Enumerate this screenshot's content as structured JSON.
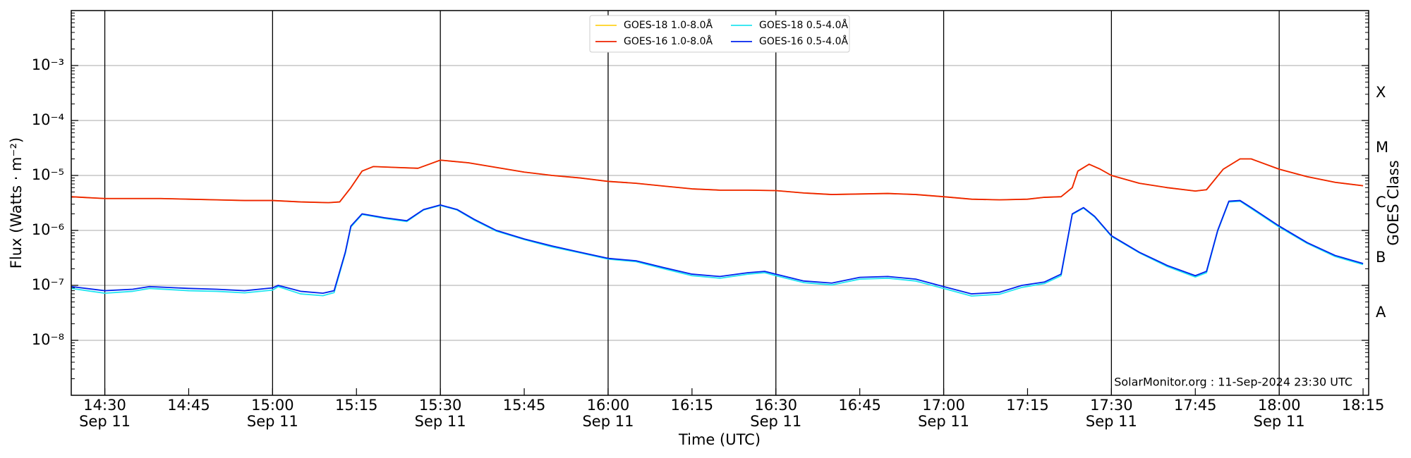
{
  "chart_data": {
    "type": "line",
    "xlabel": "Time (UTC)",
    "ylabel": "Flux (Watts · m⁻²)",
    "y2label": "GOES Class",
    "annotation": "SolarMonitor.org : 11-Sep-2024 23:30 UTC",
    "log_y": true,
    "grid": true,
    "xgrid": true,
    "legend": "top-center",
    "xlim": [
      "14:24",
      "18:16"
    ],
    "xticks": [
      {
        "value": "14:30",
        "label": "14:30",
        "date": "Sep 11"
      },
      {
        "value": "14:45",
        "label": "14:45"
      },
      {
        "value": "15:00",
        "label": "15:00",
        "date": "Sep 11"
      },
      {
        "value": "15:15",
        "label": "15:15"
      },
      {
        "value": "15:30",
        "label": "15:30",
        "date": "Sep 11"
      },
      {
        "value": "15:45",
        "label": "15:45"
      },
      {
        "value": "16:00",
        "label": "16:00",
        "date": "Sep 11"
      },
      {
        "value": "16:15",
        "label": "16:15"
      },
      {
        "value": "16:30",
        "label": "16:30",
        "date": "Sep 11"
      },
      {
        "value": "16:45",
        "label": "16:45"
      },
      {
        "value": "17:00",
        "label": "17:00",
        "date": "Sep 11"
      },
      {
        "value": "17:15",
        "label": "17:15"
      },
      {
        "value": "17:30",
        "label": "17:30",
        "date": "Sep 11"
      },
      {
        "value": "17:45",
        "label": "17:45"
      },
      {
        "value": "18:00",
        "label": "18:00",
        "date": "Sep 11"
      },
      {
        "value": "18:15",
        "label": "18:15"
      }
    ],
    "ylim": [
      1e-09,
      0.01
    ],
    "yticks": [
      {
        "value": 1e-08,
        "label": "10⁻⁸"
      },
      {
        "value": 1e-07,
        "label": "10⁻⁷"
      },
      {
        "value": 1e-06,
        "label": "10⁻⁶"
      },
      {
        "value": 1e-05,
        "label": "10⁻⁵"
      },
      {
        "value": 0.0001,
        "label": "10⁻⁴"
      },
      {
        "value": 0.001,
        "label": "10⁻³"
      }
    ],
    "y2lim": [
      1e-09,
      0.01
    ],
    "y2ticks": [
      {
        "value": 3.162e-08,
        "label": "A"
      },
      {
        "value": 3.162e-07,
        "label": "B"
      },
      {
        "value": 3.162e-06,
        "label": "C"
      },
      {
        "value": 3.162e-05,
        "label": "M"
      },
      {
        "value": 0.0003162,
        "label": "X"
      }
    ],
    "series": [
      {
        "name": "GOES-18 1.0-8.0Å",
        "color": "#ffd21f",
        "x": [
          "14:24",
          "14:30",
          "14:35",
          "14:40",
          "14:45",
          "14:50",
          "14:55",
          "15:00",
          "15:05",
          "15:10",
          "15:12",
          "15:14",
          "15:16",
          "15:18",
          "15:22",
          "15:26",
          "15:28",
          "15:30",
          "15:35",
          "15:40",
          "15:45",
          "15:50",
          "15:55",
          "16:00",
          "16:05",
          "16:10",
          "16:15",
          "16:20",
          "16:25",
          "16:30",
          "16:35",
          "16:40",
          "16:45",
          "16:50",
          "16:55",
          "17:00",
          "17:05",
          "17:10",
          "17:15",
          "17:18",
          "17:21",
          "17:23",
          "17:24",
          "17:26",
          "17:28",
          "17:30",
          "17:35",
          "17:40",
          "17:45",
          "17:47",
          "17:50",
          "17:53",
          "17:55",
          "18:00",
          "18:05",
          "18:10",
          "18:15"
        ],
        "values": [
          4.1e-06,
          3.8e-06,
          3.8e-06,
          3.8e-06,
          3.7e-06,
          3.6e-06,
          3.5e-06,
          3.5e-06,
          3.3e-06,
          3.2e-06,
          3.3e-06,
          6e-06,
          1.2e-05,
          1.45e-05,
          1.4e-05,
          1.35e-05,
          1.6e-05,
          1.9e-05,
          1.7e-05,
          1.4e-05,
          1.15e-05,
          1e-05,
          9e-06,
          7.8e-06,
          7.2e-06,
          6.4e-06,
          5.7e-06,
          5.4e-06,
          5.4e-06,
          5.3e-06,
          4.8e-06,
          4.5e-06,
          4.6e-06,
          4.7e-06,
          4.5e-06,
          4.1e-06,
          3.7e-06,
          3.6e-06,
          3.7e-06,
          4e-06,
          4.1e-06,
          6e-06,
          1.2e-05,
          1.6e-05,
          1.3e-05,
          1e-05,
          7.2e-06,
          6e-06,
          5.2e-06,
          5.5e-06,
          1.3e-05,
          2e-05,
          2e-05,
          1.3e-05,
          9.5e-06,
          7.5e-06,
          6.5e-06
        ]
      },
      {
        "name": "GOES-16 1.0-8.0Å",
        "color": "#ee2200",
        "x": [
          "14:24",
          "14:30",
          "14:35",
          "14:40",
          "14:45",
          "14:50",
          "14:55",
          "15:00",
          "15:05",
          "15:10",
          "15:12",
          "15:14",
          "15:16",
          "15:18",
          "15:22",
          "15:26",
          "15:28",
          "15:30",
          "15:35",
          "15:40",
          "15:45",
          "15:50",
          "15:55",
          "16:00",
          "16:05",
          "16:10",
          "16:15",
          "16:20",
          "16:25",
          "16:30",
          "16:35",
          "16:40",
          "16:45",
          "16:50",
          "16:55",
          "17:00",
          "17:05",
          "17:10",
          "17:15",
          "17:18",
          "17:21",
          "17:23",
          "17:24",
          "17:26",
          "17:28",
          "17:30",
          "17:35",
          "17:40",
          "17:45",
          "17:47",
          "17:50",
          "17:53",
          "17:55",
          "18:00",
          "18:05",
          "18:10",
          "18:15"
        ],
        "values": [
          4.1e-06,
          3.8e-06,
          3.8e-06,
          3.8e-06,
          3.7e-06,
          3.6e-06,
          3.5e-06,
          3.5e-06,
          3.3e-06,
          3.2e-06,
          3.3e-06,
          6e-06,
          1.2e-05,
          1.45e-05,
          1.4e-05,
          1.35e-05,
          1.6e-05,
          1.9e-05,
          1.7e-05,
          1.4e-05,
          1.15e-05,
          1e-05,
          9e-06,
          7.8e-06,
          7.2e-06,
          6.4e-06,
          5.7e-06,
          5.4e-06,
          5.4e-06,
          5.3e-06,
          4.8e-06,
          4.5e-06,
          4.6e-06,
          4.7e-06,
          4.5e-06,
          4.1e-06,
          3.7e-06,
          3.6e-06,
          3.7e-06,
          4e-06,
          4.1e-06,
          6e-06,
          1.2e-05,
          1.6e-05,
          1.3e-05,
          1e-05,
          7.2e-06,
          6e-06,
          5.2e-06,
          5.5e-06,
          1.3e-05,
          2e-05,
          2e-05,
          1.3e-05,
          9.5e-06,
          7.5e-06,
          6.5e-06
        ]
      },
      {
        "name": "GOES-18 0.5-4.0Å",
        "color": "#22e5f0",
        "x": [
          "14:24",
          "14:30",
          "14:35",
          "14:38",
          "14:45",
          "14:50",
          "14:55",
          "15:00",
          "15:01",
          "15:05",
          "15:09",
          "15:11",
          "15:13",
          "15:14",
          "15:16",
          "15:20",
          "15:24",
          "15:27",
          "15:30",
          "15:33",
          "15:36",
          "15:40",
          "15:45",
          "15:50",
          "15:55",
          "16:00",
          "16:05",
          "16:10",
          "16:15",
          "16:20",
          "16:25",
          "16:28",
          "16:30",
          "16:35",
          "16:40",
          "16:45",
          "16:50",
          "16:55",
          "17:00",
          "17:05",
          "17:10",
          "17:14",
          "17:18",
          "17:21",
          "17:23",
          "17:25",
          "17:27",
          "17:30",
          "17:35",
          "17:40",
          "17:45",
          "17:47",
          "17:49",
          "17:51",
          "17:53",
          "17:55",
          "18:00",
          "18:05",
          "18:10",
          "18:15"
        ],
        "values": [
          8.8e-08,
          7.2e-08,
          7.8e-08,
          8.8e-08,
          8e-08,
          7.8e-08,
          7.3e-08,
          8.2e-08,
          9.5e-08,
          7e-08,
          6.5e-08,
          7.4e-08,
          3.8e-07,
          1.15e-06,
          1.95e-06,
          1.65e-06,
          1.45e-06,
          2.35e-06,
          2.85e-06,
          2.35e-06,
          1.55e-06,
          9.7e-07,
          6.8e-07,
          5e-07,
          3.9e-07,
          3e-07,
          2.7e-07,
          2e-07,
          1.5e-07,
          1.35e-07,
          1.6e-07,
          1.7e-07,
          1.5e-07,
          1.12e-07,
          1.02e-07,
          1.3e-07,
          1.35e-07,
          1.2e-07,
          8.8e-08,
          6.4e-08,
          6.9e-08,
          9.2e-08,
          1.08e-07,
          1.5e-07,
          1.95e-06,
          2.55e-06,
          1.75e-06,
          7.8e-07,
          3.9e-07,
          2.2e-07,
          1.42e-07,
          1.7e-07,
          9.7e-07,
          3.3e-06,
          3.4e-06,
          2.5e-06,
          1.15e-06,
          5.8e-07,
          3.35e-07,
          2.4e-07
        ]
      },
      {
        "name": "GOES-16 0.5-4.0Å",
        "color": "#0022ee",
        "x": [
          "14:24",
          "14:30",
          "14:35",
          "14:38",
          "14:45",
          "14:50",
          "14:55",
          "15:00",
          "15:01",
          "15:05",
          "15:09",
          "15:11",
          "15:13",
          "15:14",
          "15:16",
          "15:20",
          "15:24",
          "15:27",
          "15:30",
          "15:33",
          "15:36",
          "15:40",
          "15:45",
          "15:50",
          "15:55",
          "16:00",
          "16:05",
          "16:10",
          "16:15",
          "16:20",
          "16:25",
          "16:28",
          "16:30",
          "16:35",
          "16:40",
          "16:45",
          "16:50",
          "16:55",
          "17:00",
          "17:05",
          "17:10",
          "17:14",
          "17:18",
          "17:21",
          "17:23",
          "17:25",
          "17:27",
          "17:30",
          "17:35",
          "17:40",
          "17:45",
          "17:47",
          "17:49",
          "17:51",
          "17:53",
          "17:55",
          "18:00",
          "18:05",
          "18:10",
          "18:15"
        ],
        "values": [
          9.5e-08,
          8e-08,
          8.5e-08,
          9.5e-08,
          8.8e-08,
          8.5e-08,
          8e-08,
          9e-08,
          1e-07,
          7.8e-08,
          7.2e-08,
          8e-08,
          4e-07,
          1.2e-06,
          2e-06,
          1.7e-06,
          1.5e-06,
          2.4e-06,
          2.9e-06,
          2.4e-06,
          1.6e-06,
          1e-06,
          7e-07,
          5.2e-07,
          4e-07,
          3.1e-07,
          2.8e-07,
          2.1e-07,
          1.6e-07,
          1.45e-07,
          1.7e-07,
          1.8e-07,
          1.6e-07,
          1.2e-07,
          1.1e-07,
          1.4e-07,
          1.45e-07,
          1.3e-07,
          9.5e-08,
          7e-08,
          7.5e-08,
          1e-07,
          1.15e-07,
          1.6e-07,
          2e-06,
          2.6e-06,
          1.8e-06,
          8e-07,
          4e-07,
          2.3e-07,
          1.5e-07,
          1.8e-07,
          1e-06,
          3.4e-06,
          3.5e-06,
          2.6e-06,
          1.2e-06,
          6e-07,
          3.5e-07,
          2.5e-07
        ]
      }
    ]
  }
}
